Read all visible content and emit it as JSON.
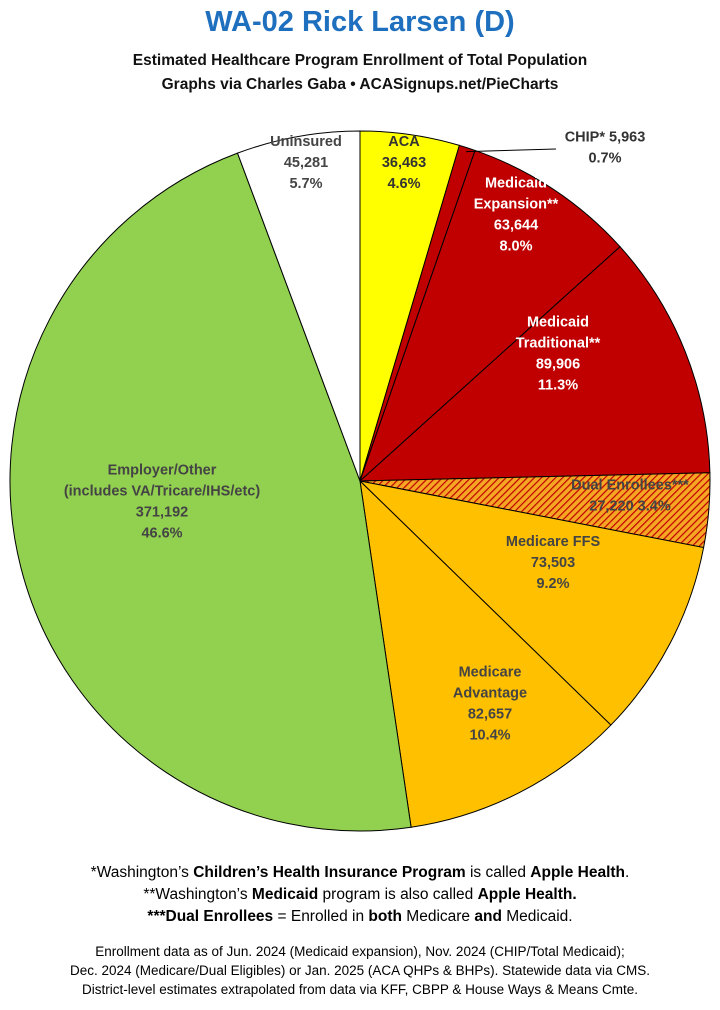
{
  "header": {
    "title": "WA-02 Rick Larsen (D)",
    "subtitle1": "Estimated Healthcare Program Enrollment of Total Population",
    "subtitle2": "Graphs via Charles Gaba  •  ACASignups.net/PieCharts"
  },
  "chart_data": {
    "type": "pie",
    "start": "12 o'clock, clockwise",
    "slices": [
      {
        "name": "ACA",
        "value": 36463,
        "pct": "4.6%",
        "color": "#ffff00",
        "text_color": "#333333",
        "label": [
          "ACA",
          "36,463",
          "4.6%"
        ]
      },
      {
        "name": "CHIP*",
        "value": 5963,
        "pct": "0.7%",
        "color": "#c00000",
        "text_color": "#333333",
        "label": [
          "CHIP* 5,963",
          "0.7%"
        ]
      },
      {
        "name": "Medicaid Expansion**",
        "value": 63644,
        "pct": "8.0%",
        "color": "#c00000",
        "text_color": "#ffffff",
        "label": [
          "Medicaid",
          "Expansion**",
          "63,644",
          "8.0%"
        ]
      },
      {
        "name": "Medicaid Traditional**",
        "value": 89906,
        "pct": "11.3%",
        "color": "#c00000",
        "text_color": "#ffffff",
        "label": [
          "Medicaid",
          "Traditional**",
          "89,906",
          "11.3%"
        ]
      },
      {
        "name": "Dual Enrollees***",
        "value": 27220,
        "pct": "3.4%",
        "color": "#f5a623",
        "hatch": "#c00000",
        "text_color": "#444444",
        "label": [
          "Dual Enrollees***",
          "27,220 3.4%"
        ]
      },
      {
        "name": "Medicare FFS",
        "value": 73503,
        "pct": "9.2%",
        "color": "#ffc000",
        "text_color": "#444444",
        "label": [
          "Medicare FFS",
          "73,503",
          "9.2%"
        ]
      },
      {
        "name": "Medicare Advantage",
        "value": 82657,
        "pct": "10.4%",
        "color": "#ffc000",
        "text_color": "#444444",
        "label": [
          "Medicare",
          "Advantage",
          "82,657",
          "10.4%"
        ]
      },
      {
        "name": "Employer/Other (includes VA/Tricare/IHS/etc)",
        "value": 371192,
        "pct": "46.6%",
        "color": "#92d050",
        "text_color": "#444444",
        "label": [
          "Employer/Other",
          "(includes VA/Tricare/IHS/etc)",
          "371,192",
          "46.6%"
        ]
      },
      {
        "name": "Uninsured",
        "value": 45281,
        "pct": "5.7%",
        "color": "#ffffff",
        "text_color": "#444444",
        "label": [
          "Uninsured",
          "45,281",
          "5.7%"
        ]
      }
    ]
  },
  "notes": {
    "line1": [
      "*Washington’s ",
      "Children’s Health Insurance Program",
      " is called ",
      "Apple Health",
      "."
    ],
    "line2": [
      "**Washington’s ",
      "Medicaid",
      " program is also called ",
      "Apple Health."
    ],
    "line3": [
      "***Dual Enrollees",
      " = Enrolled in ",
      "both",
      " Medicare ",
      "and",
      " Medicaid."
    ]
  },
  "source": {
    "line1": "Enrollment data as of Jun. 2024 (Medicaid expansion), Nov. 2024 (CHIP/Total Medicaid);",
    "line2": "Dec. 2024 (Medicare/Dual Eligibles) or Jan. 2025 (ACA QHPs & BHPs). Statewide data via CMS.",
    "line3": "District-level estimates extrapolated from data via KFF, CBPP & House Ways & Means Cmte."
  }
}
